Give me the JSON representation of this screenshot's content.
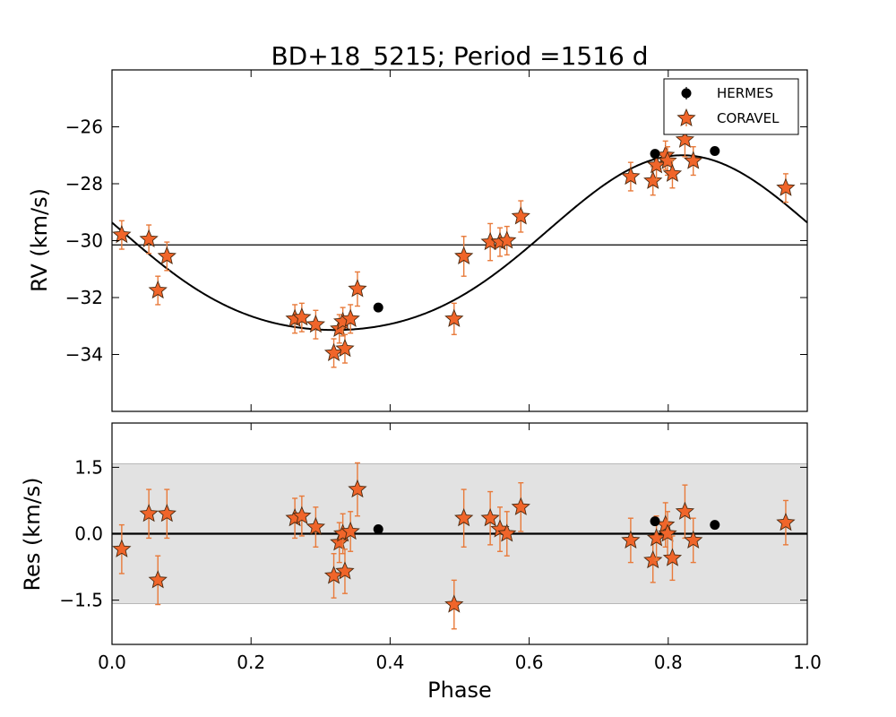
{
  "chart_data": {
    "title": "BD+18_5215; Period =1516 d",
    "type": "scatter",
    "xlabel": "Phase",
    "xlim": [
      0.0,
      1.0
    ],
    "xticks": [
      0.0,
      0.2,
      0.4,
      0.6,
      0.8,
      1.0
    ],
    "xtick_labels": [
      "0.0",
      "0.2",
      "0.4",
      "0.6",
      "0.8",
      "1.0"
    ],
    "legend": {
      "placement": "top-right",
      "entries": [
        {
          "label": "HERMES",
          "marker": "circle"
        },
        {
          "label": "CORAVEL",
          "marker": "star"
        }
      ]
    },
    "colors": {
      "hermes": "#000000",
      "coravel_fill": "#f0652a",
      "coravel_edge": "#4a2a10",
      "errorbar": "#e87a3a",
      "band": "#e2e2e2",
      "band_edge": "#b8b8b8",
      "fit": "#000000"
    },
    "rv_panel": {
      "ylabel": "RV (km/s)",
      "ylim": [
        -36.0,
        -24.0
      ],
      "yticks": [
        -26,
        -28,
        -30,
        -32,
        -34
      ],
      "ytick_labels": [
        "−26",
        "−28",
        "−30",
        "−32",
        "−34"
      ],
      "systemic_velocity": -30.15,
      "fit_curve": {
        "description": "Keplerian orbit fit",
        "gamma": -30.07,
        "amplitude": 3.07,
        "phase_of_max": 0.82,
        "phase_at_zero": -29.05
      },
      "hermes": [
        {
          "phase": 0.383,
          "rv": -32.35
        },
        {
          "phase": 0.781,
          "rv": -26.95
        },
        {
          "phase": 0.867,
          "rv": -26.85
        }
      ],
      "coravel": [
        {
          "phase": 0.014,
          "rv": -29.8,
          "err": 0.5
        },
        {
          "phase": 0.053,
          "rv": -29.95,
          "err": 0.5
        },
        {
          "phase": 0.066,
          "rv": -31.75,
          "err": 0.5
        },
        {
          "phase": 0.079,
          "rv": -30.55,
          "err": 0.5
        },
        {
          "phase": 0.263,
          "rv": -32.75,
          "err": 0.5
        },
        {
          "phase": 0.273,
          "rv": -32.7,
          "err": 0.5
        },
        {
          "phase": 0.293,
          "rv": -32.95,
          "err": 0.5
        },
        {
          "phase": 0.319,
          "rv": -33.95,
          "err": 0.5
        },
        {
          "phase": 0.327,
          "rv": -33.1,
          "err": 0.5
        },
        {
          "phase": 0.332,
          "rv": -32.85,
          "err": 0.5
        },
        {
          "phase": 0.335,
          "rv": -33.8,
          "err": 0.5
        },
        {
          "phase": 0.343,
          "rv": -32.75,
          "err": 0.5
        },
        {
          "phase": 0.353,
          "rv": -31.7,
          "err": 0.6
        },
        {
          "phase": 0.492,
          "rv": -32.75,
          "err": 0.55
        },
        {
          "phase": 0.506,
          "rv": -30.55,
          "err": 0.7
        },
        {
          "phase": 0.544,
          "rv": -30.05,
          "err": 0.65
        },
        {
          "phase": 0.558,
          "rv": -30.05,
          "err": 0.5
        },
        {
          "phase": 0.568,
          "rv": -30.0,
          "err": 0.5
        },
        {
          "phase": 0.588,
          "rv": -29.15,
          "err": 0.55
        },
        {
          "phase": 0.746,
          "rv": -27.75,
          "err": 0.5
        },
        {
          "phase": 0.778,
          "rv": -27.9,
          "err": 0.5
        },
        {
          "phase": 0.783,
          "rv": -27.35,
          "err": 0.5
        },
        {
          "phase": 0.796,
          "rv": -27.0,
          "err": 0.5
        },
        {
          "phase": 0.799,
          "rv": -27.2,
          "err": 0.5
        },
        {
          "phase": 0.806,
          "rv": -27.65,
          "err": 0.5
        },
        {
          "phase": 0.824,
          "rv": -26.45,
          "err": 0.6
        },
        {
          "phase": 0.836,
          "rv": -27.2,
          "err": 0.5
        },
        {
          "phase": 0.969,
          "rv": -28.15,
          "err": 0.5
        }
      ]
    },
    "res_panel": {
      "ylabel": "Res (km/s)",
      "ylim": [
        -2.5,
        2.5
      ],
      "yticks": [
        1.5,
        0.0,
        -1.5
      ],
      "ytick_labels": [
        "1.5",
        "0.0",
        "−1.5"
      ],
      "band": [
        -1.58,
        1.58
      ],
      "zero_line": 0.0,
      "hermes": [
        {
          "phase": 0.383,
          "res": 0.1
        },
        {
          "phase": 0.781,
          "res": 0.28
        },
        {
          "phase": 0.867,
          "res": 0.2
        }
      ],
      "coravel": [
        {
          "phase": 0.014,
          "res": -0.35,
          "err": 0.55
        },
        {
          "phase": 0.053,
          "res": 0.45,
          "err": 0.55
        },
        {
          "phase": 0.066,
          "res": -1.05,
          "err": 0.55
        },
        {
          "phase": 0.079,
          "res": 0.45,
          "err": 0.55
        },
        {
          "phase": 0.263,
          "res": 0.35,
          "err": 0.45
        },
        {
          "phase": 0.273,
          "res": 0.4,
          "err": 0.45
        },
        {
          "phase": 0.293,
          "res": 0.15,
          "err": 0.45
        },
        {
          "phase": 0.319,
          "res": -0.95,
          "err": 0.5
        },
        {
          "phase": 0.327,
          "res": -0.2,
          "err": 0.45
        },
        {
          "phase": 0.332,
          "res": 0.0,
          "err": 0.45
        },
        {
          "phase": 0.335,
          "res": -0.85,
          "err": 0.5
        },
        {
          "phase": 0.343,
          "res": 0.05,
          "err": 0.45
        },
        {
          "phase": 0.353,
          "res": 1.0,
          "err": 0.6
        },
        {
          "phase": 0.492,
          "res": -1.6,
          "err": 0.55
        },
        {
          "phase": 0.506,
          "res": 0.35,
          "err": 0.65
        },
        {
          "phase": 0.544,
          "res": 0.35,
          "err": 0.6
        },
        {
          "phase": 0.558,
          "res": 0.1,
          "err": 0.5
        },
        {
          "phase": 0.568,
          "res": 0.0,
          "err": 0.5
        },
        {
          "phase": 0.588,
          "res": 0.6,
          "err": 0.55
        },
        {
          "phase": 0.746,
          "res": -0.15,
          "err": 0.5
        },
        {
          "phase": 0.778,
          "res": -0.6,
          "err": 0.5
        },
        {
          "phase": 0.783,
          "res": -0.1,
          "err": 0.5
        },
        {
          "phase": 0.796,
          "res": 0.2,
          "err": 0.5
        },
        {
          "phase": 0.799,
          "res": 0.0,
          "err": 0.5
        },
        {
          "phase": 0.806,
          "res": -0.55,
          "err": 0.5
        },
        {
          "phase": 0.824,
          "res": 0.5,
          "err": 0.6
        },
        {
          "phase": 0.836,
          "res": -0.15,
          "err": 0.5
        },
        {
          "phase": 0.969,
          "res": 0.25,
          "err": 0.5
        }
      ]
    }
  }
}
